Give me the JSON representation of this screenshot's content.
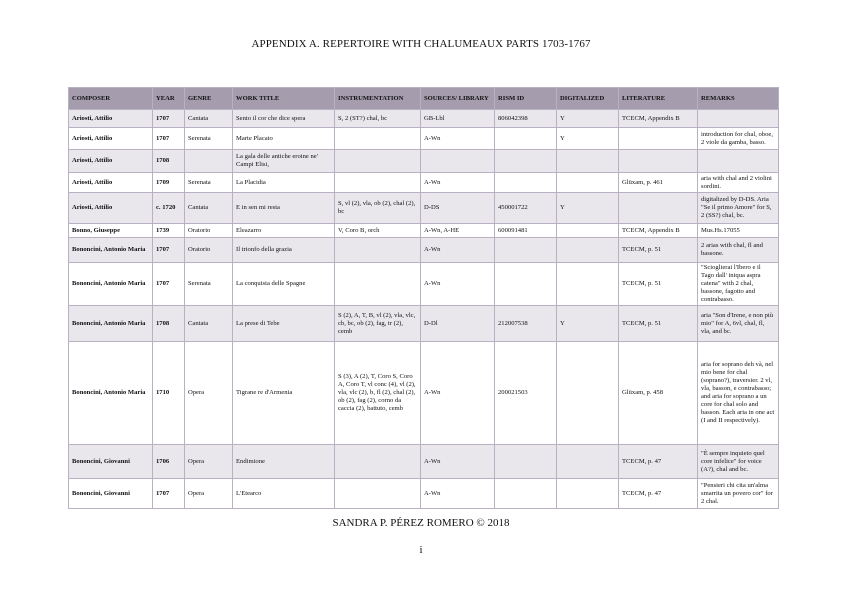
{
  "title": "APPENDIX A. REPERTOIRE WITH CHALUMEAUX PARTS 1703-1767",
  "table": {
    "headers": [
      "COMPOSER",
      "YEAR",
      "GENRE",
      "WORK TITLE",
      "INSTRUMENTATION",
      "SOURCES/ LIBRARY",
      "RISM ID",
      "DIGITALIZED",
      "LITERATURE",
      "REMARKS"
    ],
    "rows": [
      [
        "Ariosti, Attilio",
        "1707",
        "Cantata",
        "Sento il cor che dice spera",
        "S, 2 (ST?) chal, bc",
        "GB-Lbl",
        "806042398",
        "Y",
        "TCECM, Appendix B",
        ""
      ],
      [
        "Ariosti, Attilio",
        "1707",
        "Serenata",
        "Marte Placato",
        "",
        "A-Wn",
        "",
        "Y",
        "",
        "introduction for chal, oboe, 2 viole da gamba, basso."
      ],
      [
        "Ariosti, Attilio",
        "1708",
        "",
        "La gala delle antiche eroine ne' Campi Elisi,",
        "",
        "",
        "",
        "",
        "",
        ""
      ],
      [
        "Ariosti, Attilio",
        "1709",
        "Serenata",
        "La Placidia",
        "",
        "A-Wn",
        "",
        "",
        "Glüxam, p. 461",
        "aria with chal and 2 violini sordini."
      ],
      [
        "Ariosti, Attilio",
        "c. 1720",
        "Cantata",
        "E in sen mi resta",
        "S, vl (2), vla, ob (2), chal (2), bc",
        "D-DS",
        "450001722",
        "Y",
        "",
        "digitalized by D-DS. Aria \"Se il primo Amore\" for S, 2 (SS?) chal, bc."
      ],
      [
        "Bonno, Giuseppe",
        "1739",
        "Oratorio",
        "Eleazarro",
        "V, Coro B, orch",
        "A-Wn, A-HE",
        "600091481",
        "",
        "TCECM, Appendix B",
        "Mus.Hs.17055"
      ],
      [
        "Bononcini, Antonio Maria",
        "1707",
        "Oratorio",
        "Il trionfo della grazia",
        "",
        "A-Wn",
        "",
        "",
        "TCECM, p. 51",
        "2 arias with chal, fl and bassone."
      ],
      [
        "Bononcini, Antonio Maria",
        "1707",
        "Serenata",
        "La conquista delle Spagne",
        "",
        "A-Wn",
        "",
        "",
        "TCECM, p. 51",
        "\"Scioglierai l'Ibero e il Tago dall' iniqua aspra catena\" with 2 chal, bassone, fagotto and contrabasso."
      ],
      [
        "Bononcini, Antonio Maria",
        "1708",
        "Cantata",
        "La prese di Tebe",
        "S (2), A, T, B, vl (2), vla, vlc, cb, bc, ob (2), fag, tr (2), cemb",
        "D-Dl",
        "212007538",
        "Y",
        "TCECM, p. 51",
        "aria \"Son d'Irene, e non più mio\" for A, 6vl, chal, fl, vla, and bc."
      ],
      [
        "Bononcini, Antonio Maria",
        "1710",
        "Opera",
        "Tigrane re d'Armenia",
        "S (3), A (2), T, Coro S, Coro A, Coro T, vl conc (4), vl (2), vla, vlc (2), b, fl (2), chal (2), ob (2), fag (2), corno da caccia (2), battuto, cemb",
        "A-Wn",
        "200021503",
        "",
        "Glüxam, p. 458",
        "aria for soprano deh và, nel mio bene for chal (soprano?), traversier. 2 vl, vla, basson, e contrabasso; and aria for soprano a un core for chal solo and basson. Each aria in one act (I and II respectively)."
      ],
      [
        "Bononcini, Giovanni",
        "1706",
        "Opera",
        "Endimione",
        "",
        "A-Wn",
        "",
        "",
        "TCECM, p. 47",
        "\"È sempre inquieto quel core infelice\" for voice (A?), chal and bc."
      ],
      [
        "Bononcini, Giovanni",
        "1707",
        "Opera",
        "L'Etearco",
        "",
        "A-Wn",
        "",
        "",
        "TCECM, p. 47",
        "\"Pensieri chi cita un'alma smarrita un povero cor\" for 2 chal."
      ]
    ]
  },
  "footer": "SANDRA P. PÉREZ ROMERO © 2018",
  "page_number": "i",
  "colors": {
    "header_bg": "#a59cae",
    "row_alt_bg": "#e9e7ec",
    "border": "#b9b0c3"
  }
}
